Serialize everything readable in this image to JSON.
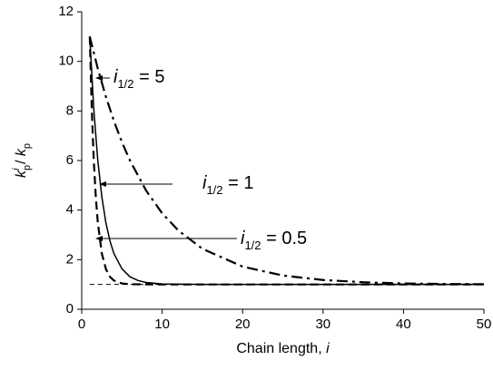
{
  "chart_data": {
    "type": "line",
    "xlabel": [
      "Chain length, ",
      "i"
    ],
    "ylabel": {
      "k1": "k",
      "sub1": "p",
      "sup1": "i",
      "slash": " / ",
      "k2": "k",
      "sub2": "p"
    },
    "xlim": [
      0,
      50
    ],
    "ylim": [
      0,
      12
    ],
    "xticks": [
      0,
      10,
      20,
      30,
      40,
      50
    ],
    "yticks": [
      0,
      2,
      4,
      6,
      8,
      10,
      12
    ],
    "series": [
      {
        "style": "dashdot",
        "color": "#000000",
        "x": [
          1,
          2,
          3,
          4,
          5,
          6,
          8,
          10,
          12,
          15,
          20,
          25,
          30,
          35,
          40,
          45,
          50
        ],
        "values": [
          11,
          9.71,
          8.58,
          7.6,
          6.74,
          6.0,
          4.79,
          3.87,
          3.18,
          2.44,
          1.72,
          1.36,
          1.18,
          1.09,
          1.04,
          1.02,
          1.01
        ],
        "label": {
          "var": "i",
          "sub": "1/2",
          "rest": " = 5"
        }
      },
      {
        "style": "solid",
        "color": "#000000",
        "x": [
          1,
          1.5,
          2,
          2.5,
          3,
          3.5,
          4,
          5,
          6,
          7,
          8,
          10,
          15,
          20,
          30,
          40,
          50
        ],
        "values": [
          11,
          8.07,
          6.0,
          4.54,
          3.5,
          2.77,
          2.25,
          1.63,
          1.31,
          1.16,
          1.08,
          1.02,
          1.0,
          1.0,
          1.0,
          1.0,
          1.0
        ],
        "label": {
          "var": "i",
          "sub": "1/2",
          "rest": " = 1"
        }
      },
      {
        "style": "dash",
        "color": "#000000",
        "x": [
          1,
          1.25,
          1.5,
          1.75,
          2,
          2.5,
          3,
          3.5,
          4,
          5,
          6,
          10,
          20,
          50
        ],
        "values": [
          11,
          8.07,
          6.0,
          4.54,
          3.5,
          2.25,
          1.63,
          1.31,
          1.16,
          1.04,
          1.01,
          1.0,
          1.0,
          1.0
        ],
        "label": {
          "var": "i",
          "sub": "1/2",
          "rest": " = 0.5"
        }
      },
      {
        "style": "shortdash",
        "color": "#000000",
        "x": [
          1,
          50
        ],
        "values": [
          1,
          1
        ]
      }
    ]
  }
}
